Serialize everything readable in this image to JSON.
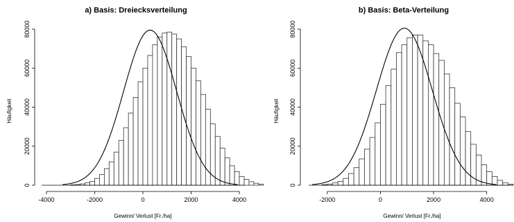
{
  "chart_data": [
    {
      "type": "bar",
      "title": "a) Basis: Dreiecksverteilung",
      "xlabel": "Gewinn/ Verlust [Fr./ha]",
      "ylabel": "Häufigkeit",
      "xlim": [
        -4200,
        4200
      ],
      "ylim": [
        0,
        80000
      ],
      "x_ticks": [
        "-4000",
        "-2000",
        "0",
        "2000",
        "4000"
      ],
      "x_tick_values": [
        -4000,
        -2000,
        0,
        2000,
        4000
      ],
      "y_ticks": [
        "0",
        "20000",
        "40000",
        "60000",
        "80000"
      ],
      "y_tick_values": [
        0,
        20000,
        40000,
        60000,
        80000
      ],
      "bin_width": 200,
      "bin_start": -3000,
      "values": [
        200,
        400,
        700,
        1200,
        2000,
        3500,
        5500,
        8500,
        12000,
        17000,
        23000,
        29500,
        37000,
        45000,
        53000,
        60000,
        66500,
        72000,
        76000,
        78000,
        78500,
        77500,
        75000,
        71000,
        66000,
        60000,
        53500,
        46500,
        39000,
        31500,
        25000,
        19000,
        14000,
        10000,
        7000,
        4500,
        3000,
        1800,
        1000,
        500
      ],
      "density_curve": {
        "peak_x": 300,
        "peak_y": 79500,
        "sd": 1100
      },
      "grid": false,
      "legend": "none"
    },
    {
      "type": "bar",
      "title": "b) Basis: Beta-Verteilung",
      "xlabel": "Gewinn/ Verlust [Fr./ha]",
      "ylabel": "Häufigkeit",
      "xlim": [
        -2700,
        5000
      ],
      "ylim": [
        0,
        80000
      ],
      "x_ticks": [
        "-2000",
        "0",
        "2000",
        "4000"
      ],
      "x_tick_values": [
        -2000,
        0,
        2000,
        4000
      ],
      "y_ticks": [
        "0",
        "20000",
        "40000",
        "60000",
        "80000"
      ],
      "y_tick_values": [
        0,
        20000,
        40000,
        60000,
        80000
      ],
      "bin_width": 200,
      "bin_start": -2200,
      "values": [
        300,
        600,
        1200,
        2000,
        3500,
        6000,
        9000,
        13500,
        18500,
        24500,
        32000,
        41500,
        51000,
        59500,
        68000,
        72000,
        75500,
        77000,
        77000,
        74000,
        72000,
        67500,
        64000,
        57000,
        50000,
        42000,
        35000,
        27500,
        21000,
        15500,
        10500,
        7000,
        4500,
        2500,
        1200,
        500
      ],
      "density_curve": {
        "peak_x": 900,
        "peak_y": 80500,
        "sd": 1050
      },
      "grid": false,
      "legend": "none"
    }
  ]
}
